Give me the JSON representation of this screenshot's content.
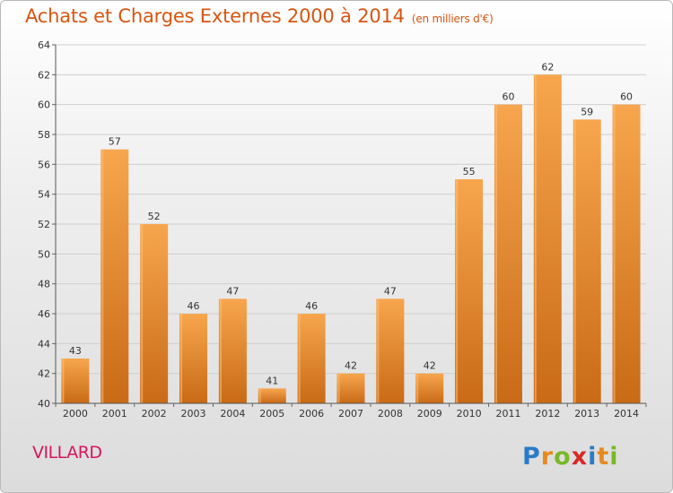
{
  "header": {
    "title": "Achats et Charges Externes 2000 à 2014",
    "unit": "(en milliers d'€)"
  },
  "footer": {
    "place": "VILLARD",
    "brand": "Proxiti"
  },
  "colors": {
    "title": "#d85510",
    "place": "#d6155e",
    "bar_light": "#f7a64e",
    "bar_dark": "#c96a16",
    "bar_highlight": "#ffc27a",
    "grid": "#cfcfcf"
  },
  "chart_data": {
    "type": "bar",
    "title": "Achats et Charges Externes 2000 à 2014",
    "subtitle": "(en milliers d'€)",
    "categories": [
      "2000",
      "2001",
      "2002",
      "2003",
      "2004",
      "2005",
      "2006",
      "2007",
      "2008",
      "2009",
      "2010",
      "2011",
      "2012",
      "2013",
      "2014"
    ],
    "values": [
      43,
      57,
      52,
      46,
      47,
      41,
      46,
      42,
      47,
      42,
      55,
      60,
      62,
      59,
      60
    ],
    "data_labels": [
      "43",
      "57",
      "52",
      "46",
      "47",
      "41",
      "46",
      "42",
      "47",
      "42",
      "55",
      "60",
      "62",
      "59",
      "60"
    ],
    "ylim": [
      40,
      64
    ],
    "y_ticks": [
      40,
      42,
      44,
      46,
      48,
      50,
      52,
      54,
      56,
      58,
      60,
      62,
      64
    ],
    "y_tick_labels": [
      "40",
      "42",
      "44",
      "46",
      "48",
      "50",
      "52",
      "54",
      "56",
      "58",
      "60",
      "62",
      "64"
    ],
    "grid": true,
    "legend": "none"
  }
}
